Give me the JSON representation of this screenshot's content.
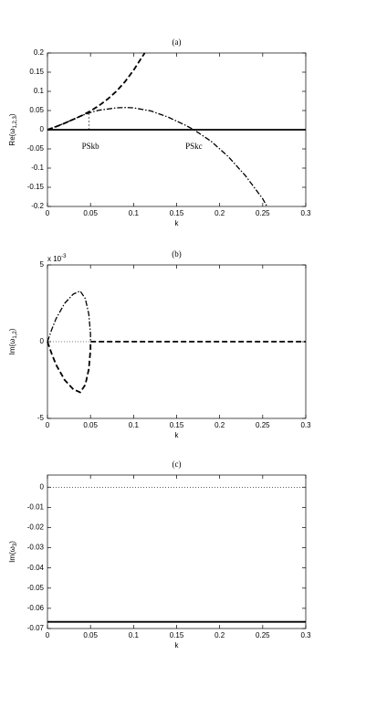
{
  "chart_data": [
    {
      "type": "line",
      "title": "(a)",
      "xlabel": "k",
      "ylabel": {
        "main": "Re(ω",
        "sub": "1,2,3",
        "end": ")"
      },
      "xlim": [
        0,
        0.3
      ],
      "xticks": [
        0,
        0.05,
        0.1,
        0.15,
        0.2,
        0.25,
        0.3
      ],
      "ylim": [
        -0.2,
        0.2
      ],
      "yticks": [
        -0.2,
        -0.15,
        -0.1,
        -0.05,
        0,
        0.05,
        0.1,
        0.15,
        0.2
      ],
      "annotations": [
        "PSkb",
        "PSkc"
      ],
      "series": [
        {
          "color": "#000000",
          "style": "solid",
          "x": [
            0,
            0.3
          ],
          "values": [
            0,
            0
          ]
        },
        {
          "color": "#000000",
          "style": "dashed",
          "x": [
            0,
            0.01,
            0.02,
            0.03,
            0.04,
            0.05,
            0.06,
            0.07,
            0.08,
            0.09,
            0.1,
            0.11,
            0.113
          ],
          "values": [
            0,
            0.008,
            0.017,
            0.027,
            0.037,
            0.049,
            0.063,
            0.08,
            0.1,
            0.125,
            0.155,
            0.19,
            0.2
          ]
        },
        {
          "color": "#000000",
          "style": "dashdot",
          "x": [
            0,
            0.02,
            0.04,
            0.05,
            0.06,
            0.08,
            0.09,
            0.1,
            0.12,
            0.14,
            0.16,
            0.17,
            0.19,
            0.21,
            0.23,
            0.25,
            0.255
          ],
          "values": [
            0,
            0.017,
            0.037,
            0.045,
            0.051,
            0.057,
            0.058,
            0.057,
            0.049,
            0.033,
            0.012,
            0,
            -0.03,
            -0.07,
            -0.12,
            -0.18,
            -0.2
          ]
        },
        {
          "color": "#000000",
          "style": "thin",
          "x": [
            0.048,
            0.048
          ],
          "values": [
            0,
            0.047
          ]
        }
      ]
    },
    {
      "type": "line",
      "title": "(b)",
      "xlabel": "k",
      "ylabel": {
        "main": "Im(ω",
        "sub": "1,2",
        "end": ")"
      },
      "y_multiplier": "x 10",
      "y_multiplier_exp": "-3",
      "xlim": [
        0,
        0.3
      ],
      "xticks": [
        0,
        0.05,
        0.1,
        0.15,
        0.2,
        0.25,
        0.3
      ],
      "ylim": [
        -0.005,
        0.005
      ],
      "yticks": [
        {
          "value": -0.005,
          "label": "-5"
        },
        0,
        {
          "value": 0.005,
          "label": "5"
        }
      ],
      "series": [
        {
          "color": "#000000",
          "style": "dotted",
          "x": [
            0,
            0.05
          ],
          "values": [
            0,
            0
          ]
        },
        {
          "color": "#000000",
          "style": "dashed",
          "x": [
            0.05,
            0.3
          ],
          "values": [
            0,
            0
          ]
        },
        {
          "color": "#000000",
          "style": "dashdot",
          "x": [
            0,
            0.005,
            0.01,
            0.02,
            0.03,
            0.038,
            0.044,
            0.048,
            0.05,
            0.05
          ],
          "values": [
            0,
            0.0008,
            0.0015,
            0.0025,
            0.0031,
            0.0033,
            0.0028,
            0.0018,
            0.0005,
            0
          ]
        },
        {
          "color": "#000000",
          "style": "dashed",
          "x": [
            0,
            0.005,
            0.01,
            0.02,
            0.03,
            0.038,
            0.044,
            0.048,
            0.05,
            0.05
          ],
          "values": [
            0,
            -0.0008,
            -0.0015,
            -0.0025,
            -0.0031,
            -0.0033,
            -0.0028,
            -0.0018,
            -0.0005,
            0
          ]
        }
      ]
    },
    {
      "type": "line",
      "title": "(c)",
      "xlabel": "k",
      "ylabel": {
        "main": "Im(ω",
        "sub": "3",
        "end": ")"
      },
      "xlim": [
        0,
        0.3
      ],
      "xticks": [
        0,
        0.05,
        0.1,
        0.15,
        0.2,
        0.25,
        0.3
      ],
      "ylim": [
        -0.07,
        0.006
      ],
      "yticks": [
        -0.07,
        -0.06,
        -0.05,
        -0.04,
        -0.03,
        -0.02,
        -0.01,
        0
      ],
      "series": [
        {
          "color": "#000000",
          "style": "dotted",
          "x": [
            0,
            0.3
          ],
          "values": [
            0,
            0
          ]
        },
        {
          "color": "#000000",
          "style": "solid",
          "x": [
            0,
            0.3
          ],
          "values": [
            -0.0667,
            -0.0667
          ]
        }
      ]
    }
  ]
}
